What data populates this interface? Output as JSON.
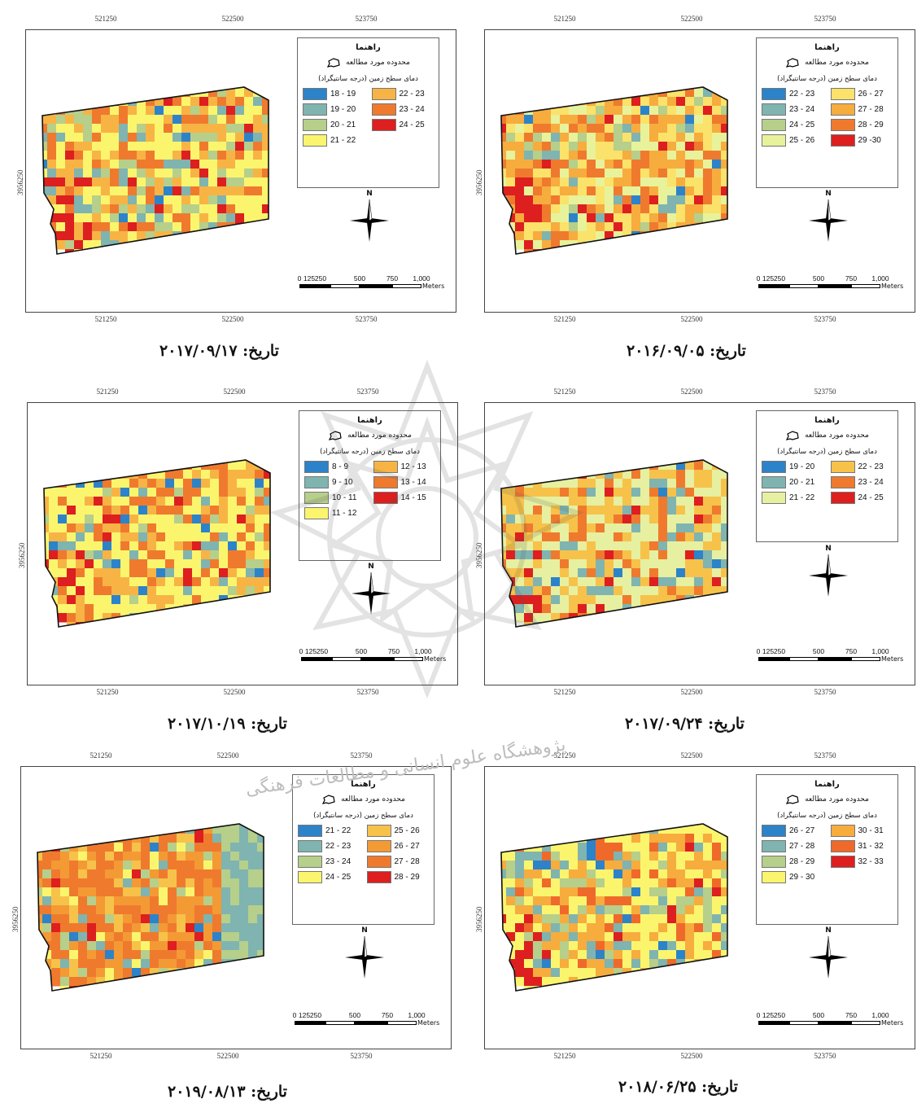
{
  "legend_common": {
    "title": "راهنما",
    "study_area": "محدوده مورد مطالعه",
    "temp_label": "دمای سطح زمین (درجه سانتیگراد)"
  },
  "scale": {
    "labels": [
      "0",
      "125",
      "250",
      "500",
      "750",
      "1,000"
    ],
    "unit": "Meters"
  },
  "north_label": "N",
  "colors": {
    "blue": "#2c83c9",
    "teal": "#7fb4b0",
    "green": "#b6cf8a",
    "yellow": "#fbf56e",
    "lightorange": "#f7c24a",
    "orange": "#f39a35",
    "darkorange": "#ee6a2a",
    "red": "#dd1f1f"
  },
  "panels": [
    {
      "caption": "تاریخ: ۲۰۱۶/۰۹/۰۵",
      "x_ticks_top": [
        "521250",
        "522500",
        "523750"
      ],
      "x_ticks_bottom": [
        "521250",
        "522500",
        "523750"
      ],
      "y_tick": "3956250",
      "legend": [
        {
          "label": "22 - 23",
          "color": "#2c83c9"
        },
        {
          "label": "23 - 24",
          "color": "#7fb4b0"
        },
        {
          "label": "24 - 25",
          "color": "#b6cf8a"
        },
        {
          "label": "25 - 26",
          "color": "#e8f29a"
        },
        {
          "label": "26 - 27",
          "color": "#fbe26a"
        },
        {
          "label": "27 - 28",
          "color": "#f7ac3e"
        },
        {
          "label": "28 - 29",
          "color": "#ef7a2e"
        },
        {
          "label": "29 -30",
          "color": "#dd1f1f"
        }
      ]
    },
    {
      "caption": "تاریخ: ۲۰۱۷/۰۹/۱۷",
      "x_ticks_top": [
        "521250",
        "522500",
        "523750"
      ],
      "x_ticks_bottom": [
        "521250",
        "522500",
        "523750"
      ],
      "y_tick": "3956250",
      "legend": [
        {
          "label": "18 - 19",
          "color": "#2c83c9"
        },
        {
          "label": "19 - 20",
          "color": "#7fb4b0"
        },
        {
          "label": "20 - 21",
          "color": "#b6cf8a"
        },
        {
          "label": "21 - 22",
          "color": "#fbf56e"
        },
        {
          "label": "22 - 23",
          "color": "#f7b445"
        },
        {
          "label": "23 - 24",
          "color": "#ef7a2e"
        },
        {
          "label": "24 - 25",
          "color": "#dd1f1f"
        }
      ]
    },
    {
      "caption": "تاریخ: ۲۰۱۷/۰۹/۲۴",
      "x_ticks_top": [
        "521250",
        "522500",
        "523750"
      ],
      "x_ticks_bottom": [
        "521250",
        "522500",
        "523750"
      ],
      "y_tick": "3956250",
      "legend": [
        {
          "label": "19 - 20",
          "color": "#2c83c9"
        },
        {
          "label": "20 - 21",
          "color": "#7fb4b0"
        },
        {
          "label": "21 - 22",
          "color": "#e6f0a0"
        },
        {
          "label": "22 - 23",
          "color": "#f7c24a"
        },
        {
          "label": "23 - 24",
          "color": "#ef7a2e"
        },
        {
          "label": "24 - 25",
          "color": "#dd1f1f"
        }
      ]
    },
    {
      "caption": "تاریخ: ۲۰۱۷/۱۰/۱۹",
      "x_ticks_top": [
        "521250",
        "522500",
        "523750"
      ],
      "x_ticks_bottom": [
        "521250",
        "522500",
        "523750"
      ],
      "y_tick": "3956250",
      "legend": [
        {
          "label": "8 - 9",
          "color": "#2c83c9"
        },
        {
          "label": "9 - 10",
          "color": "#7fb4b0"
        },
        {
          "label": "10 - 11",
          "color": "#b6cf8a"
        },
        {
          "label": "11 - 12",
          "color": "#fbf56e"
        },
        {
          "label": "12 - 13",
          "color": "#f7b445"
        },
        {
          "label": "13 - 14",
          "color": "#ef7a2e"
        },
        {
          "label": "14 - 15",
          "color": "#dd1f1f"
        }
      ]
    },
    {
      "caption": "تاریخ: ۲۰۱۸/۰۶/۲۵",
      "x_ticks_top": [
        "521250",
        "522500",
        "523750"
      ],
      "x_ticks_bottom": [
        "521250",
        "522500",
        "523750"
      ],
      "y_tick": "3956250",
      "legend": [
        {
          "label": "26 - 27",
          "color": "#2c83c9"
        },
        {
          "label": "27 - 28",
          "color": "#7fb4b0"
        },
        {
          "label": "28 - 29",
          "color": "#b6cf8a"
        },
        {
          "label": "29 - 30",
          "color": "#fbf56e"
        },
        {
          "label": "30 - 31",
          "color": "#f7ac3e"
        },
        {
          "label": "31 - 32",
          "color": "#ef6a2a"
        },
        {
          "label": "32 - 33",
          "color": "#dd1f1f"
        }
      ]
    },
    {
      "caption": "تاریخ: ۲۰۱۹/۰۸/۱۳",
      "x_ticks_top": [
        "521250",
        "522500",
        "523750"
      ],
      "x_ticks_bottom": [
        "521250",
        "522500",
        "523750"
      ],
      "y_tick": "3956250",
      "legend": [
        {
          "label": "21 - 22",
          "color": "#2c83c9"
        },
        {
          "label": "22 - 23",
          "color": "#7fb4b0"
        },
        {
          "label": "23 - 24",
          "color": "#b6cf8a"
        },
        {
          "label": "24 - 25",
          "color": "#fbf56e"
        },
        {
          "label": "25 - 26",
          "color": "#f7c24a"
        },
        {
          "label": "26 - 27",
          "color": "#f39a35"
        },
        {
          "label": "27 - 28",
          "color": "#ef7a2e"
        },
        {
          "label": "28 - 29",
          "color": "#dd1f1f"
        }
      ]
    }
  ],
  "watermark_text": "پژوهشگاه علوم انسانی و مطالعات فرهنگی"
}
